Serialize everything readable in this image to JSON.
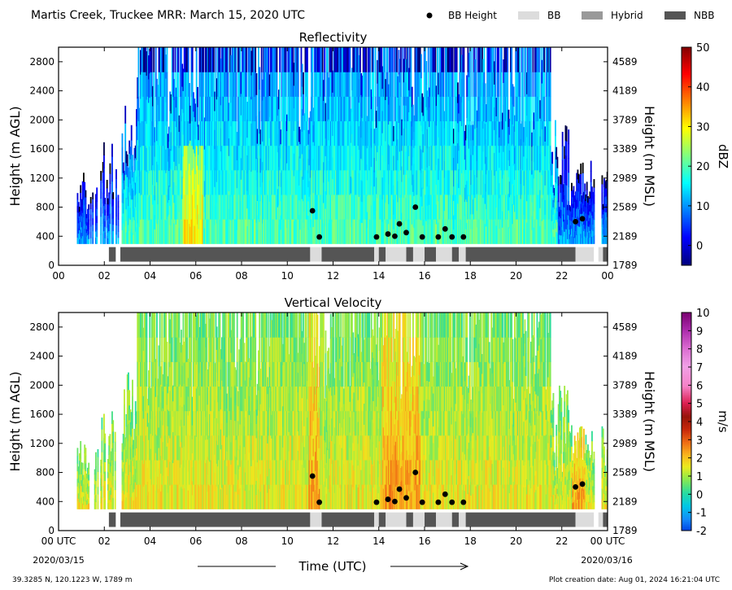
{
  "header": {
    "title": "Martis Creek, Truckee MRR:  March 15, 2020 UTC",
    "legend": [
      {
        "label": "BB Height",
        "kind": "dot",
        "color": "#000000"
      },
      {
        "label": "BB",
        "kind": "rect",
        "color": "#dcdcdc"
      },
      {
        "label": "Hybrid",
        "kind": "rect",
        "color": "#999999"
      },
      {
        "label": "NBB",
        "kind": "rect",
        "color": "#555555"
      }
    ]
  },
  "footer": {
    "location": "39.3285 N, 120.1223 W, 1789 m",
    "creation": "Plot creation date: Aug 01, 2024 16:21:04 UTC",
    "time_label": "Time (UTC)",
    "start_date": "2020/03/15",
    "end_date": "2020/03/16"
  },
  "chart_data": [
    {
      "type": "heatmap",
      "title": "Reflectivity",
      "ylabel": "Height (m AGL)",
      "ylabel_right": "Height (m MSL)",
      "ylim": [
        0,
        3000
      ],
      "xlim": [
        0,
        24
      ],
      "x_ticks": [
        "00",
        "02",
        "04",
        "06",
        "08",
        "10",
        "12",
        "14",
        "16",
        "18",
        "20",
        "22",
        "00"
      ],
      "y_ticks": [
        0,
        400,
        800,
        1200,
        1600,
        2000,
        2400,
        2800
      ],
      "y_ticks_right": [
        "1789",
        "2189",
        "2589",
        "2989",
        "3389",
        "3789",
        "4189",
        "4589"
      ],
      "colorbar": {
        "label": "dBZ",
        "min": -5,
        "max": 50,
        "ticks": [
          "0",
          "10",
          "20",
          "30",
          "40",
          "50"
        ],
        "tick_values": [
          0,
          10,
          20,
          30,
          40,
          50
        ],
        "colormap": "jet"
      },
      "bb_height_points": [
        [
          11.1,
          750
        ],
        [
          11.4,
          390
        ],
        [
          13.9,
          390
        ],
        [
          14.4,
          430
        ],
        [
          14.7,
          400
        ],
        [
          14.9,
          570
        ],
        [
          15.2,
          450
        ],
        [
          15.6,
          800
        ],
        [
          15.9,
          390
        ],
        [
          16.6,
          390
        ],
        [
          16.9,
          500
        ],
        [
          17.2,
          390
        ],
        [
          17.7,
          390
        ],
        [
          22.6,
          600
        ],
        [
          22.9,
          640
        ]
      ],
      "precip_type_bar": [
        {
          "type": "NBB",
          "start": 2.2,
          "end": 2.5
        },
        {
          "type": "NBB",
          "start": 2.7,
          "end": 11.0
        },
        {
          "type": "BB",
          "start": 11.0,
          "end": 11.5
        },
        {
          "type": "NBB",
          "start": 11.5,
          "end": 13.8
        },
        {
          "type": "BB",
          "start": 13.8,
          "end": 14.0
        },
        {
          "type": "NBB",
          "start": 14.0,
          "end": 14.3
        },
        {
          "type": "BB",
          "start": 14.3,
          "end": 15.2
        },
        {
          "type": "NBB",
          "start": 15.2,
          "end": 15.5
        },
        {
          "type": "BB",
          "start": 15.5,
          "end": 16.0
        },
        {
          "type": "NBB",
          "start": 16.0,
          "end": 16.5
        },
        {
          "type": "BB",
          "start": 16.5,
          "end": 17.2
        },
        {
          "type": "NBB",
          "start": 17.2,
          "end": 17.5
        },
        {
          "type": "BB",
          "start": 17.5,
          "end": 17.8
        },
        {
          "type": "NBB",
          "start": 17.8,
          "end": 22.6
        },
        {
          "type": "BB",
          "start": 22.6,
          "end": 23.4
        },
        {
          "type": "BB",
          "start": 23.6,
          "end": 23.8
        },
        {
          "type": "NBB",
          "start": 23.8,
          "end": 24.0
        }
      ]
    },
    {
      "type": "heatmap",
      "title": "Vertical Velocity",
      "ylabel": "Height (m AGL)",
      "ylabel_right": "Height (m MSL)",
      "xlabel": "Time (UTC)",
      "ylim": [
        0,
        3000
      ],
      "xlim": [
        0,
        24
      ],
      "x_ticks": [
        "00 UTC",
        "02",
        "04",
        "06",
        "08",
        "10",
        "12",
        "14",
        "16",
        "18",
        "20",
        "22",
        "00 UTC"
      ],
      "y_ticks": [
        0,
        400,
        800,
        1200,
        1600,
        2000,
        2400,
        2800
      ],
      "y_ticks_right": [
        "1789",
        "2189",
        "2589",
        "2989",
        "3389",
        "3789",
        "4189",
        "4589"
      ],
      "colorbar": {
        "label": "m/s",
        "min": -2,
        "max": 10,
        "ticks": [
          "-2",
          "-1",
          "0",
          "1",
          "2",
          "3",
          "4",
          "5",
          "6",
          "7",
          "8",
          "9",
          "10"
        ],
        "tick_values": [
          -2,
          -1,
          0,
          1,
          2,
          3,
          4,
          5,
          6,
          7,
          8,
          9,
          10
        ],
        "colormap": "velocity"
      },
      "bb_height_points": [
        [
          11.1,
          750
        ],
        [
          11.4,
          390
        ],
        [
          13.9,
          390
        ],
        [
          14.4,
          430
        ],
        [
          14.7,
          400
        ],
        [
          14.9,
          570
        ],
        [
          15.2,
          450
        ],
        [
          15.6,
          800
        ],
        [
          15.9,
          390
        ],
        [
          16.6,
          390
        ],
        [
          16.9,
          500
        ],
        [
          17.2,
          390
        ],
        [
          17.7,
          390
        ],
        [
          22.6,
          600
        ],
        [
          22.9,
          640
        ]
      ],
      "precip_type_bar": [
        {
          "type": "NBB",
          "start": 2.2,
          "end": 2.5
        },
        {
          "type": "NBB",
          "start": 2.7,
          "end": 11.0
        },
        {
          "type": "BB",
          "start": 11.0,
          "end": 11.5
        },
        {
          "type": "NBB",
          "start": 11.5,
          "end": 13.8
        },
        {
          "type": "BB",
          "start": 13.8,
          "end": 14.0
        },
        {
          "type": "NBB",
          "start": 14.0,
          "end": 14.3
        },
        {
          "type": "BB",
          "start": 14.3,
          "end": 15.2
        },
        {
          "type": "NBB",
          "start": 15.2,
          "end": 15.5
        },
        {
          "type": "BB",
          "start": 15.5,
          "end": 16.0
        },
        {
          "type": "NBB",
          "start": 16.0,
          "end": 16.5
        },
        {
          "type": "BB",
          "start": 16.5,
          "end": 17.2
        },
        {
          "type": "NBB",
          "start": 17.2,
          "end": 17.5
        },
        {
          "type": "BB",
          "start": 17.5,
          "end": 17.8
        },
        {
          "type": "NBB",
          "start": 17.8,
          "end": 22.6
        },
        {
          "type": "BB",
          "start": 22.6,
          "end": 23.4
        },
        {
          "type": "BB",
          "start": 23.6,
          "end": 23.8
        },
        {
          "type": "NBB",
          "start": 23.8,
          "end": 24.0
        }
      ]
    }
  ]
}
